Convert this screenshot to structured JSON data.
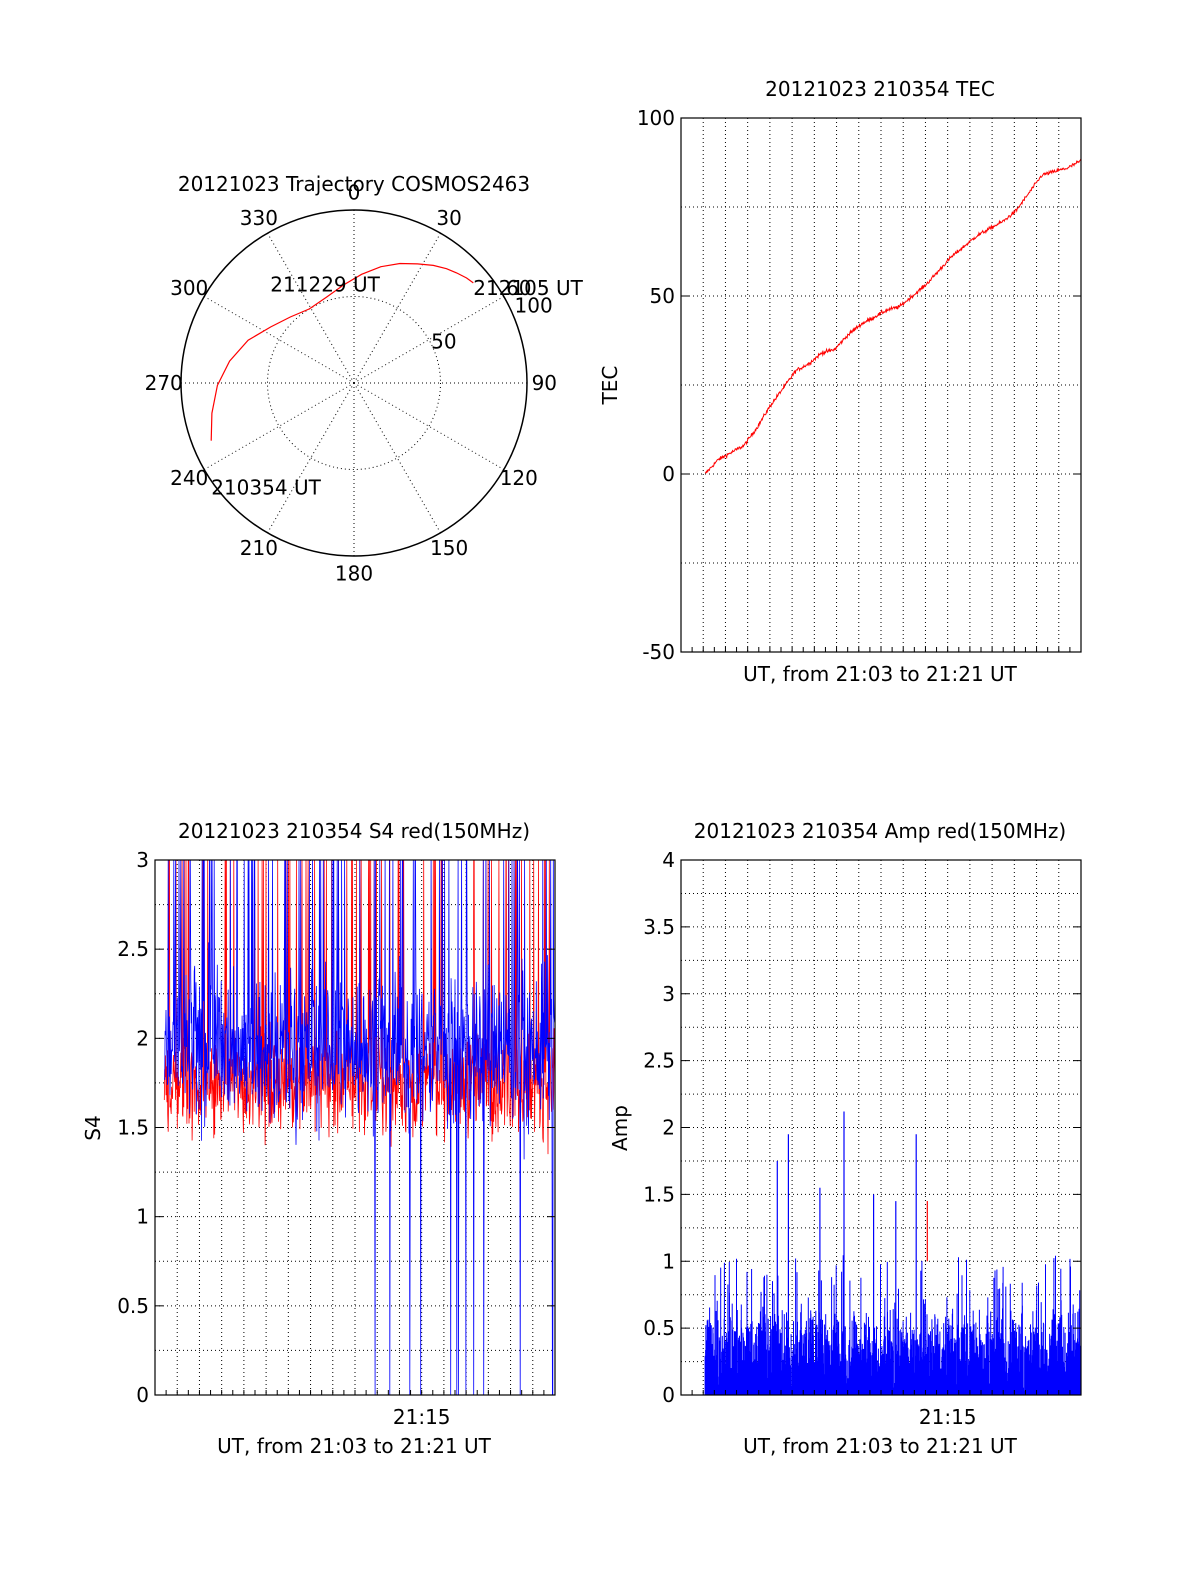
{
  "figure": {
    "background": "#ffffff",
    "colors": {
      "red": "#ff0000",
      "blue": "#0000ff",
      "black": "#000000"
    }
  },
  "chart_data": [
    {
      "id": "trajectory",
      "type": "polar",
      "title": "20121023 Trajectory COSMOS2463",
      "azimuth_labels": [
        "0",
        "30",
        "60",
        "90",
        "120",
        "150",
        "180",
        "210",
        "240",
        "270",
        "300",
        "330"
      ],
      "azimuth_values": [
        0,
        30,
        60,
        90,
        120,
        150,
        180,
        210,
        240,
        270,
        300,
        330
      ],
      "radial_labels": [
        "50",
        "100"
      ],
      "radial_values": [
        50,
        100
      ],
      "radial_max": 100,
      "grid": true,
      "track": {
        "color": "#ff0000",
        "points": [
          {
            "az": 248,
            "r": 89
          },
          {
            "az": 258,
            "r": 84
          },
          {
            "az": 269,
            "r": 79
          },
          {
            "az": 280,
            "r": 73
          },
          {
            "az": 292,
            "r": 66
          },
          {
            "az": 304,
            "r": 58
          },
          {
            "az": 316,
            "r": 53
          },
          {
            "az": 329,
            "r": 50
          },
          {
            "az": 342,
            "r": 52
          },
          {
            "az": 354,
            "r": 57
          },
          {
            "az": 4,
            "r": 63
          },
          {
            "az": 13,
            "r": 69
          },
          {
            "az": 21,
            "r": 74
          },
          {
            "az": 28,
            "r": 78
          },
          {
            "az": 34,
            "r": 82
          },
          {
            "az": 39,
            "r": 85
          },
          {
            "az": 43,
            "r": 87
          },
          {
            "az": 47,
            "r": 89
          },
          {
            "az": 50,
            "r": 90
          }
        ]
      },
      "annotations": [
        {
          "text": "212105 UT",
          "az": 50,
          "r": 90
        },
        {
          "text": "211229 UT",
          "az": 338,
          "r": 52
        },
        {
          "text": "210354 UT",
          "az": 248,
          "r": 89
        }
      ]
    },
    {
      "id": "tec",
      "type": "line",
      "title": "20121023 210354 TEC",
      "xlabel": "UT, from 21:03 to 21:21 UT",
      "ylabel": "TEC",
      "x_range": [
        "21:03",
        "21:21"
      ],
      "ylim": [
        -50,
        100
      ],
      "yticks": [
        -50,
        0,
        50,
        100
      ],
      "grid": true,
      "series": [
        {
          "color": "#ff0000",
          "points": [
            {
              "t": "21:04:05",
              "v": 0
            },
            {
              "t": "21:04:40",
              "v": 4
            },
            {
              "t": "21:05:15",
              "v": 6
            },
            {
              "t": "21:05:50",
              "v": 8
            },
            {
              "t": "21:06:25",
              "v": 13
            },
            {
              "t": "21:07:00",
              "v": 19
            },
            {
              "t": "21:07:35",
              "v": 24
            },
            {
              "t": "21:08:10",
              "v": 29
            },
            {
              "t": "21:08:45",
              "v": 31
            },
            {
              "t": "21:09:20",
              "v": 34
            },
            {
              "t": "21:09:55",
              "v": 35
            },
            {
              "t": "21:10:30",
              "v": 39
            },
            {
              "t": "21:11:05",
              "v": 42
            },
            {
              "t": "21:11:40",
              "v": 44
            },
            {
              "t": "21:12:15",
              "v": 46
            },
            {
              "t": "21:12:50",
              "v": 47
            },
            {
              "t": "21:13:25",
              "v": 50
            },
            {
              "t": "21:14:00",
              "v": 53
            },
            {
              "t": "21:14:35",
              "v": 57
            },
            {
              "t": "21:15:10",
              "v": 61
            },
            {
              "t": "21:15:45",
              "v": 64
            },
            {
              "t": "21:16:20",
              "v": 67
            },
            {
              "t": "21:16:55",
              "v": 69
            },
            {
              "t": "21:17:30",
              "v": 71
            },
            {
              "t": "21:18:05",
              "v": 74
            },
            {
              "t": "21:18:40",
              "v": 79
            },
            {
              "t": "21:19:15",
              "v": 84
            },
            {
              "t": "21:19:50",
              "v": 85
            },
            {
              "t": "21:20:25",
              "v": 86
            },
            {
              "t": "21:21:00",
              "v": 88
            }
          ]
        }
      ]
    },
    {
      "id": "s4",
      "type": "line",
      "title": "20121023 210354 S4 red(150MHz)",
      "xlabel": "UT, from 21:03 to 21:21 UT",
      "ylabel": "S4",
      "x_range": [
        "21:03",
        "21:21"
      ],
      "xtick_labels": [
        {
          "t": "21:15",
          "label": "21:15"
        }
      ],
      "ylim": [
        0,
        3
      ],
      "yticks": [
        0,
        0.5,
        1,
        1.5,
        2,
        2.5,
        3
      ],
      "ytick_labels": [
        "0",
        "0.5",
        "1",
        "1.5",
        "2",
        "2.5",
        "3"
      ],
      "grid": true,
      "series": [
        {
          "color": "#ff0000",
          "mean": 1.75,
          "spread": 0.3,
          "min": 0.95,
          "max": 3.0
        },
        {
          "color": "#0000ff",
          "mean": 1.95,
          "spread": 0.45,
          "min": 0.0,
          "max": 3.0
        }
      ]
    },
    {
      "id": "amp",
      "type": "line",
      "title": "20121023 210354 Amp red(150MHz)",
      "xlabel": "UT, from 21:03 to 21:21 UT",
      "ylabel": "Amp",
      "x_range": [
        "21:03",
        "21:21"
      ],
      "xtick_labels": [
        {
          "t": "21:15",
          "label": "21:15"
        }
      ],
      "ylim": [
        0,
        4
      ],
      "yticks": [
        0,
        0.5,
        1,
        1.5,
        2,
        2.5,
        3,
        3.5,
        4
      ],
      "ytick_labels": [
        "0",
        "0.5",
        "1",
        "1.5",
        "2",
        "2.5",
        "3",
        "3.5",
        "4"
      ],
      "grid": true,
      "series": [
        {
          "color": "#0000ff",
          "typical_max": 0.75,
          "peaks": [
            {
              "t": "21:07:50",
              "v": 1.95
            },
            {
              "t": "21:07:20",
              "v": 1.75
            },
            {
              "t": "21:09:15",
              "v": 1.55
            },
            {
              "t": "21:10:20",
              "v": 2.12
            },
            {
              "t": "21:11:40",
              "v": 1.5
            },
            {
              "t": "21:13:35",
              "v": 1.95
            },
            {
              "t": "21:12:40",
              "v": 1.45
            }
          ]
        },
        {
          "color": "#ff0000",
          "peaks": [
            {
              "t": "21:14:05",
              "v": 1.45
            }
          ]
        }
      ]
    }
  ]
}
